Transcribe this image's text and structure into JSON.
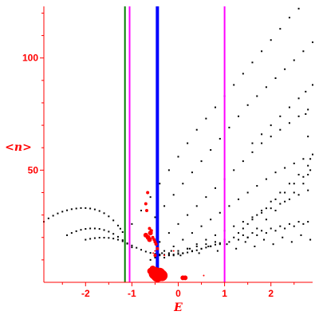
{
  "chart_data": {
    "type": "scatter",
    "title": "",
    "xlabel": "E",
    "ylabel": "<n>",
    "xlim": [
      -2.9,
      2.9
    ],
    "ylim": [
      0,
      123
    ],
    "x_ticks": [
      -2,
      -1,
      0,
      1,
      2
    ],
    "y_ticks": [
      50,
      100
    ],
    "grid": false,
    "colors": {
      "axis": "#ff0000",
      "points": "#000000",
      "highlight_points": "#ff0000",
      "line_green": "#008000",
      "line_magenta": "#ff00ff",
      "line_blue": "#0000ff"
    },
    "vertical_lines": [
      {
        "x": -1.15,
        "color": "green"
      },
      {
        "x": -1.05,
        "color": "magenta"
      },
      {
        "x": -0.45,
        "color": "blue"
      },
      {
        "x": 1.0,
        "color": "magenta"
      }
    ],
    "series": [
      {
        "marker": "small-black",
        "x": [
          -2.9,
          -2.8,
          -2.7,
          -2.6,
          -2.5,
          -2.4,
          -2.3,
          -2.2,
          -2.1,
          -2.0,
          -1.9,
          -1.8,
          -1.7,
          -1.6,
          -1.5,
          -1.4,
          -1.3,
          -1.25,
          -1.2,
          -2.4,
          -2.3,
          -2.2,
          -2.1,
          -2.0,
          -1.9,
          -1.8,
          -1.7,
          -1.6,
          -1.5,
          -1.4,
          -1.3,
          -1.2,
          -1.1,
          -1.0,
          -2.0,
          -1.9,
          -1.8,
          -1.7,
          -1.6,
          -1.5,
          -1.4,
          -1.3,
          -1.2,
          -1.1,
          -1.0,
          -0.9,
          -0.8,
          -0.7,
          -0.6,
          -0.5,
          -0.4,
          -0.3,
          -0.2,
          -0.1,
          0.0,
          0.1,
          0.2,
          0.3,
          0.4,
          0.5,
          0.6,
          0.7,
          0.8,
          0.9,
          1.0,
          -1.0,
          -0.8,
          -0.6,
          -0.4,
          -0.2,
          0.0,
          0.2,
          0.4,
          0.6,
          0.8,
          1.0,
          1.2,
          1.4,
          1.6,
          1.8,
          2.0,
          2.2,
          2.4,
          2.6,
          2.8,
          -0.5,
          -0.3,
          -0.1,
          0.1,
          0.3,
          0.5,
          0.7,
          0.9,
          1.1,
          1.3,
          1.5,
          1.7,
          1.9,
          2.1,
          2.3,
          2.5,
          2.7,
          2.9,
          -0.4,
          -0.2,
          0.0,
          0.2,
          0.4,
          0.6,
          0.8,
          1.0,
          1.2,
          1.4,
          1.6,
          1.8,
          2.0,
          2.2,
          2.4,
          2.6,
          2.8,
          -0.3,
          -0.1,
          0.1,
          0.3,
          0.5,
          0.7,
          0.9,
          1.1,
          1.3,
          1.5,
          1.7,
          1.9,
          2.1,
          2.3,
          2.5,
          2.7,
          2.9,
          -0.2,
          0.0,
          0.2,
          0.4,
          0.6,
          0.8,
          1.0,
          1.2,
          1.4,
          1.6,
          1.8,
          2.0,
          2.2,
          2.4,
          2.6,
          2.8,
          -0.6,
          -0.5,
          -0.4,
          -0.3,
          -0.2,
          -0.1,
          0.0,
          0.1,
          0.2,
          0.3,
          0.4,
          0.5,
          0.6,
          0.7,
          0.8,
          0.9,
          1.0,
          1.1,
          1.2,
          1.3,
          1.4,
          1.5,
          1.6,
          1.7,
          1.8,
          1.9,
          2.0,
          2.1,
          2.2,
          2.3,
          2.4,
          2.5,
          2.6,
          2.7,
          2.8,
          -0.35,
          -0.15,
          0.05,
          0.25,
          0.45,
          0.65,
          0.85,
          1.05,
          1.25,
          1.45,
          1.65,
          1.85,
          2.05,
          2.25,
          2.45,
          2.65,
          2.85,
          1.3,
          1.5,
          1.7,
          1.9,
          2.1,
          2.3,
          2.5,
          2.7,
          2.85,
          1.4,
          1.6,
          1.8,
          2.0,
          2.2,
          2.4,
          2.6,
          2.8,
          1.5,
          1.7,
          1.9,
          2.1,
          2.3,
          2.5,
          2.7,
          2.8,
          1.6,
          1.8,
          2.0,
          2.2,
          2.4,
          2.6,
          2.75,
          2.9,
          2.85,
          2.8,
          2.75
        ],
        "y": [
          27,
          28.5,
          29.7,
          30.7,
          31.5,
          32.1,
          32.6,
          32.9,
          33.1,
          33.1,
          32.9,
          32.5,
          31.8,
          30.8,
          29.4,
          27.6,
          25.3,
          23.9,
          22.4,
          21.0,
          22.0,
          22.8,
          23.4,
          23.8,
          24.0,
          24.0,
          23.8,
          23.3,
          22.6,
          21.6,
          20.3,
          18.8,
          17.2,
          15.6,
          19.0,
          19.4,
          19.7,
          19.9,
          19.9,
          19.8,
          19.5,
          19.0,
          18.3,
          17.4,
          16.4,
          15.4,
          14.5,
          13.7,
          13.1,
          12.7,
          12.4,
          12.3,
          12.3,
          12.4,
          12.6,
          12.9,
          13.3,
          13.8,
          14.3,
          14.9,
          15.5,
          16.1,
          16.8,
          17.5,
          18.2,
          26,
          32,
          38,
          44,
          50,
          56,
          62,
          68,
          73,
          78,
          83,
          88,
          93,
          98,
          103,
          108,
          113,
          118,
          122,
          126,
          29,
          34,
          39,
          44,
          49,
          54,
          59,
          64,
          69,
          74,
          79,
          83,
          87,
          91,
          95,
          99,
          103,
          107,
          18,
          22,
          26,
          30,
          34,
          38,
          42,
          46,
          50,
          54,
          58,
          62,
          65,
          68,
          71,
          74,
          77,
          14,
          16,
          19,
          22,
          25,
          28,
          31,
          34,
          37,
          40,
          43,
          46,
          49,
          51,
          53,
          55,
          57,
          12,
          13,
          15,
          17,
          19,
          21,
          23,
          25,
          27,
          29,
          31,
          33,
          35,
          37,
          39,
          41,
          10,
          11,
          12,
          11,
          13,
          12,
          14,
          13,
          15,
          14,
          16,
          15,
          17,
          16,
          18,
          17,
          19,
          18,
          20,
          19,
          21,
          20,
          22,
          21,
          23,
          22,
          24,
          23,
          25,
          24,
          26,
          25,
          27,
          26,
          27,
          13,
          14,
          12,
          15,
          13,
          16,
          14,
          17,
          15,
          18,
          16,
          19,
          17,
          20,
          18,
          21,
          19,
          22,
          26,
          30,
          33,
          37,
          40,
          44,
          47,
          50,
          24,
          28,
          32,
          36,
          40,
          44,
          48,
          52,
          20,
          24,
          28,
          32,
          36,
          40,
          44,
          48,
          62,
          66,
          70,
          74,
          78,
          82,
          85,
          88,
          55,
          65,
          75
        ]
      },
      {
        "marker": "red",
        "x": [
          -0.5,
          -0.45,
          -0.4,
          -0.35,
          -0.55,
          -0.6,
          -0.5,
          -0.45,
          -0.7,
          -0.65,
          -0.62,
          -0.6,
          -0.58,
          -0.55,
          -0.52,
          -0.5,
          -0.48,
          -0.68,
          -0.66,
          -0.62,
          -0.7,
          -0.54,
          -0.5,
          -0.3,
          -0.1,
          0.1,
          0.15,
          0.55
        ],
        "y": [
          4,
          3,
          4,
          3,
          6,
          5,
          12,
          15,
          21,
          20,
          19,
          22,
          23,
          20,
          19,
          18,
          17,
          32,
          40,
          24,
          35,
          13,
          14,
          12,
          14,
          2,
          2,
          3
        ],
        "size": [
          8,
          8,
          7,
          7,
          4,
          4,
          2,
          2,
          3,
          3,
          3,
          3,
          2,
          2,
          2,
          2,
          2,
          2,
          2,
          2,
          2,
          1,
          1,
          1,
          1,
          3,
          3,
          1
        ]
      }
    ]
  }
}
